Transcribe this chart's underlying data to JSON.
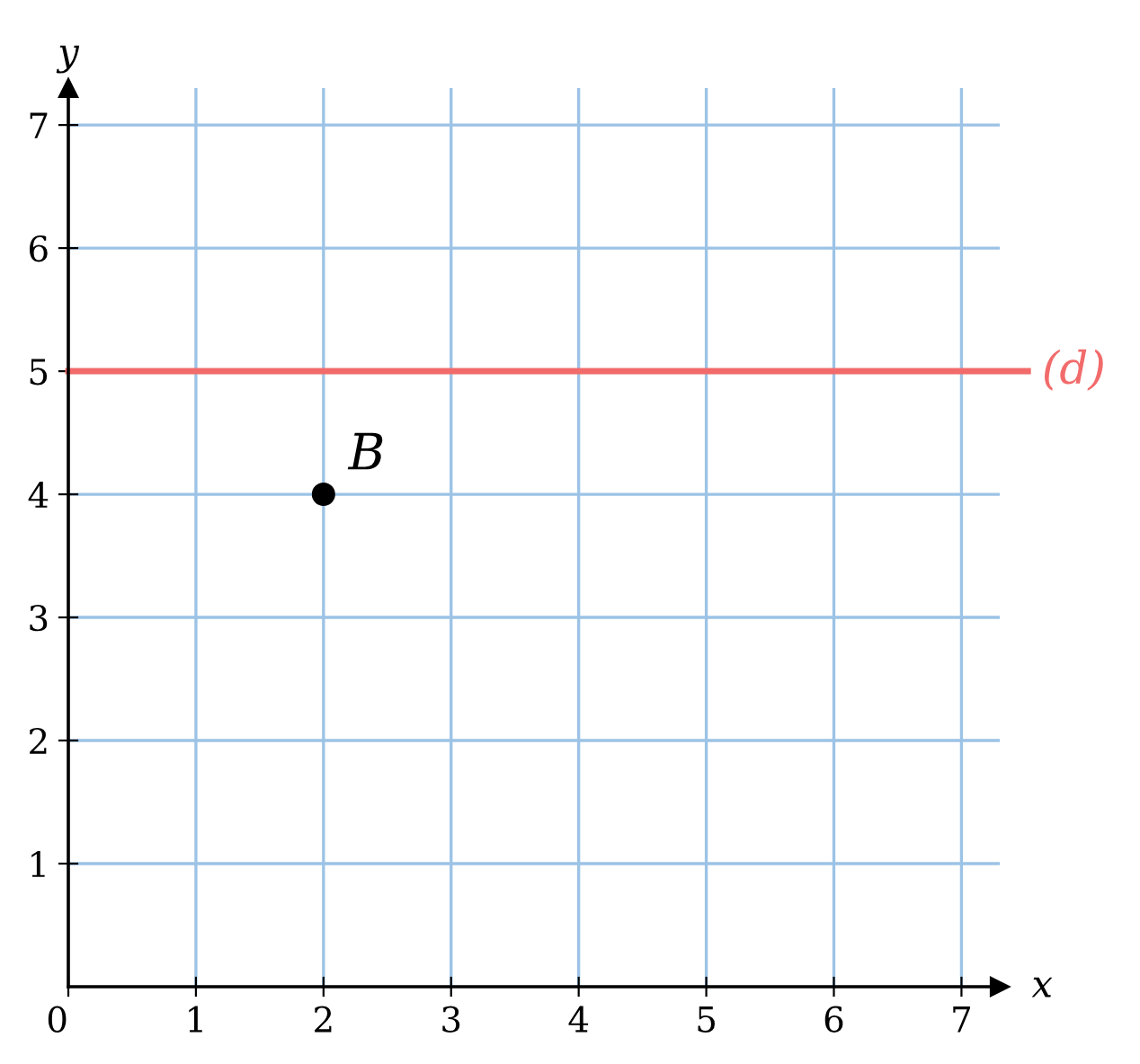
{
  "chart_data": {
    "type": "scatter",
    "xlabel": "x",
    "ylabel": "y",
    "series": [
      {
        "color": "#000000",
        "x": [
          2
        ],
        "values": [
          4
        ]
      }
    ],
    "annotations": [
      {
        "text": "B",
        "x": 2,
        "y": 4
      }
    ],
    "ref_lines": [
      {
        "axis": "y",
        "value": 5,
        "label": "(d)",
        "color": "#f26b6b"
      }
    ],
    "xlim": [
      0,
      7.3
    ],
    "ylim": [
      0,
      7.3
    ],
    "xticks": [
      0,
      1,
      2,
      3,
      4,
      5,
      6,
      7
    ],
    "yticks": [
      1,
      2,
      3,
      4,
      5,
      6,
      7
    ],
    "grid": true,
    "marker": "circle",
    "legend": false
  }
}
